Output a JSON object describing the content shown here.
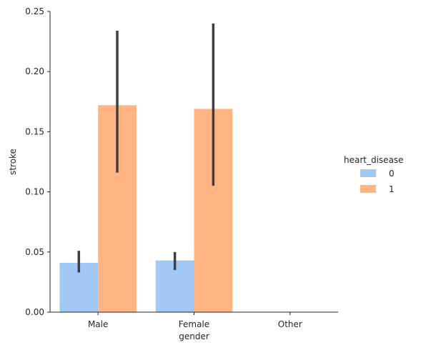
{
  "chart_data": {
    "type": "bar",
    "title": "",
    "xlabel": "gender",
    "ylabel": "stroke",
    "categories": [
      "Male",
      "Female",
      "Other"
    ],
    "ylim": [
      0,
      0.25
    ],
    "yticks": [
      0.0,
      0.05,
      0.1,
      0.15,
      0.2,
      0.25
    ],
    "ytick_labels": [
      "0.00",
      "0.05",
      "0.10",
      "0.15",
      "0.20",
      "0.25"
    ],
    "grid": false,
    "legend": {
      "title": "heart_disease",
      "placement": "right"
    },
    "series": [
      {
        "name": "0",
        "color": "#a1c9f4",
        "values": [
          0.041,
          0.043,
          null
        ],
        "ci": [
          [
            0.033,
            0.051
          ],
          [
            0.035,
            0.05
          ],
          null
        ]
      },
      {
        "name": "1",
        "color": "#ffb482",
        "values": [
          0.172,
          0.169,
          null
        ],
        "ci": [
          [
            0.116,
            0.234
          ],
          [
            0.105,
            0.24
          ],
          null
        ]
      }
    ],
    "errorbar_color": "#3f3f3f"
  }
}
